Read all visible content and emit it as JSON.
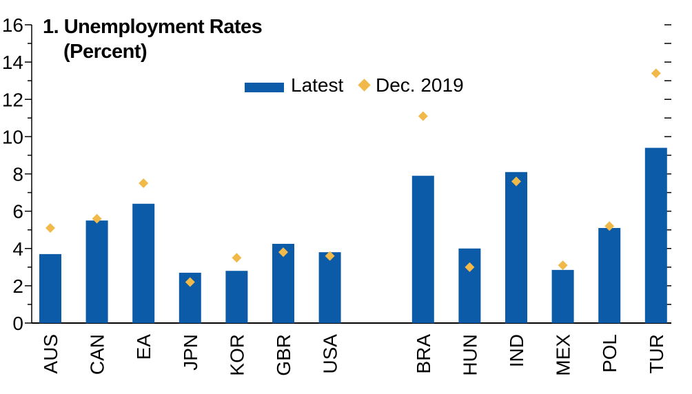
{
  "chart_data": {
    "type": "bar",
    "title": "1. Unemployment Rates",
    "subtitle": "(Percent)",
    "categories": [
      "AUS",
      "CAN",
      "EA",
      "JPN",
      "KOR",
      "GBR",
      "USA",
      "",
      "BRA",
      "HUN",
      "IND",
      "MEX",
      "POL",
      "TUR"
    ],
    "series": [
      {
        "name": "Latest",
        "kind": "bar",
        "color": "#0b5ba8",
        "values": [
          3.7,
          5.5,
          6.4,
          2.7,
          2.8,
          4.25,
          3.8,
          null,
          7.9,
          4.0,
          8.1,
          2.85,
          5.1,
          9.4
        ]
      },
      {
        "name": "Dec. 2019",
        "kind": "marker",
        "marker": "diamond",
        "color": "#f0b94a",
        "values": [
          5.1,
          5.6,
          7.5,
          2.2,
          3.5,
          3.8,
          3.6,
          null,
          11.1,
          3.0,
          7.6,
          3.1,
          5.2,
          13.4
        ]
      }
    ],
    "ylim": [
      0,
      16
    ],
    "yticks": [
      "0",
      "2",
      "4",
      "6",
      "8",
      "10",
      "12",
      "14",
      "16"
    ],
    "xlabel": "",
    "ylabel": "",
    "grid": false,
    "legend": {
      "position": "top-center",
      "entries": [
        "Latest",
        "Dec. 2019"
      ]
    }
  }
}
